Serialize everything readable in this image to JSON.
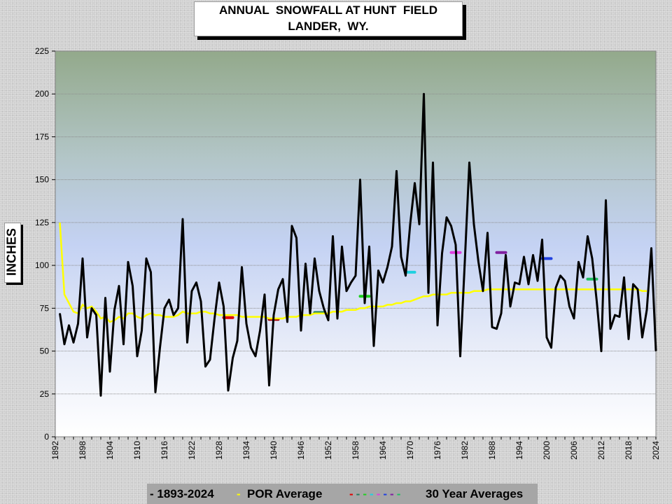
{
  "title_line1": "ANNUAL  SNOWFALL AT HUNT  FIELD",
  "title_line2": "LANDER,  WY.",
  "chart_data": {
    "type": "line",
    "title": "ANNUAL  SNOWFALL AT HUNT  FIELD LANDER,  WY.",
    "ylabel": "INCHES",
    "xlabel": "",
    "ylim": [
      0,
      225
    ],
    "xlim": [
      1892,
      2024
    ],
    "yticks": [
      0,
      25,
      50,
      75,
      100,
      125,
      150,
      175,
      200,
      225
    ],
    "xticks": [
      1892,
      1898,
      1904,
      1910,
      1916,
      1922,
      1928,
      1934,
      1940,
      1946,
      1952,
      1958,
      1964,
      1970,
      1976,
      1982,
      1988,
      1994,
      2000,
      2006,
      2012,
      2018,
      2024
    ],
    "grid": "horizontal",
    "legend_position": "bottom",
    "series": [
      {
        "name": "1893-2024",
        "color": "#000000",
        "x_start": 1893,
        "values": [
          72,
          54,
          65,
          55,
          66,
          104,
          58,
          75,
          71,
          24,
          81,
          38,
          74,
          88,
          54,
          102,
          88,
          47,
          62,
          104,
          96,
          26,
          52,
          75,
          80,
          71,
          75,
          127,
          55,
          85,
          90,
          79,
          41,
          45,
          69,
          90,
          76,
          27,
          46,
          56,
          99,
          66,
          52,
          47,
          62,
          83,
          30,
          71,
          86,
          92,
          67,
          123,
          116,
          62,
          101,
          72,
          104,
          85,
          75,
          68,
          117,
          69,
          111,
          85,
          90,
          94,
          150,
          78,
          111,
          53,
          97,
          90,
          99,
          111,
          155,
          105,
          94,
          124,
          148,
          124,
          200,
          84,
          160,
          65,
          107,
          128,
          123,
          112,
          47,
          102,
          160,
          124,
          102,
          85,
          119,
          64,
          63,
          72,
          106,
          76,
          90,
          89,
          105,
          89,
          106,
          91,
          115,
          58,
          52,
          87,
          94,
          91,
          76,
          69,
          102,
          93,
          117,
          104,
          79,
          50,
          138,
          63,
          71,
          70,
          93,
          57,
          89,
          86,
          58,
          74,
          110,
          50
        ]
      },
      {
        "name": "POR Average",
        "color": "#ffff00",
        "x_start": 1893,
        "values": [
          125,
          83,
          78,
          73,
          72,
          77,
          75,
          76,
          73,
          69,
          70,
          67,
          68,
          70,
          69,
          72,
          72,
          70,
          69,
          71,
          72,
          71,
          71,
          70,
          70,
          70,
          71,
          73,
          72,
          72,
          72,
          73,
          73,
          72,
          72,
          71,
          71,
          71,
          71,
          71,
          70,
          70,
          70,
          70,
          70,
          70,
          69,
          69,
          69,
          69,
          70,
          70,
          70,
          71,
          71,
          71,
          72,
          72,
          72,
          72,
          73,
          73,
          73,
          74,
          74,
          74,
          75,
          75,
          76,
          76,
          76,
          76,
          77,
          77,
          78,
          78,
          79,
          79,
          80,
          81,
          82,
          82,
          83,
          83,
          83,
          83,
          84,
          84,
          84,
          84,
          84,
          85,
          85,
          85,
          86,
          86,
          86,
          86,
          86,
          86,
          86,
          86,
          86,
          86,
          86,
          86,
          86,
          86,
          86,
          86,
          86,
          86,
          86,
          86,
          86,
          86,
          86,
          86,
          86,
          86,
          86,
          86,
          86,
          86,
          86,
          86,
          86,
          86,
          85,
          85
        ]
      }
    ],
    "thirty_year_averages": {
      "name": "30 Year Averages",
      "segments": [
        {
          "start": 1929,
          "end": 1931,
          "value": 69.5,
          "color": "#e00000"
        },
        {
          "start": 1939,
          "end": 1941,
          "value": 68.5,
          "color": "#a00000"
        },
        {
          "start": 1949,
          "end": 1951,
          "value": 72.5,
          "color": "#208060"
        },
        {
          "start": 1959,
          "end": 1961,
          "value": 82.0,
          "color": "#20d020"
        },
        {
          "start": 1969,
          "end": 1971,
          "value": 96.0,
          "color": "#20d0e0"
        },
        {
          "start": 1979,
          "end": 1981,
          "value": 107.5,
          "color": "#e040e0"
        },
        {
          "start": 1989,
          "end": 1991,
          "value": 107.5,
          "color": "#8020a0"
        },
        {
          "start": 1999,
          "end": 2001,
          "value": 104.0,
          "color": "#2040e0"
        },
        {
          "start": 2009,
          "end": 2011,
          "value": 92.0,
          "color": "#20c060"
        }
      ]
    }
  },
  "legend": {
    "item1_label": "- 1893-2024",
    "item2_label": "POR Average",
    "item3_label": "30 Year Averages",
    "item2_color": "#ffff00",
    "item3_colors": [
      "#e00000",
      "#208060",
      "#20d020",
      "#20d0e0",
      "#e040e0",
      "#2040e0",
      "#8020a0",
      "#20c060"
    ]
  }
}
